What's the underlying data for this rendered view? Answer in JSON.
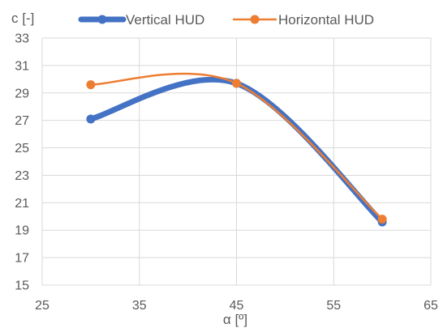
{
  "chart_data": {
    "type": "line",
    "xlabel": "α [º]",
    "ylabel": "c [-]",
    "xlim": [
      25,
      65
    ],
    "ylim": [
      15,
      33
    ],
    "xticks": [
      25,
      35,
      45,
      55,
      65
    ],
    "yticks": [
      15,
      17,
      19,
      21,
      23,
      25,
      27,
      29,
      31,
      33
    ],
    "grid": true,
    "legend": "top",
    "series": [
      {
        "name": "Vertical HUD",
        "x": [
          30,
          45,
          60
        ],
        "values": [
          27.1,
          29.7,
          19.6
        ],
        "color": "#4472C4"
      },
      {
        "name": "Horizontal HUD",
        "x": [
          30,
          45,
          60
        ],
        "values": [
          29.6,
          29.7,
          19.8
        ],
        "color": "#ED7D31"
      }
    ]
  }
}
